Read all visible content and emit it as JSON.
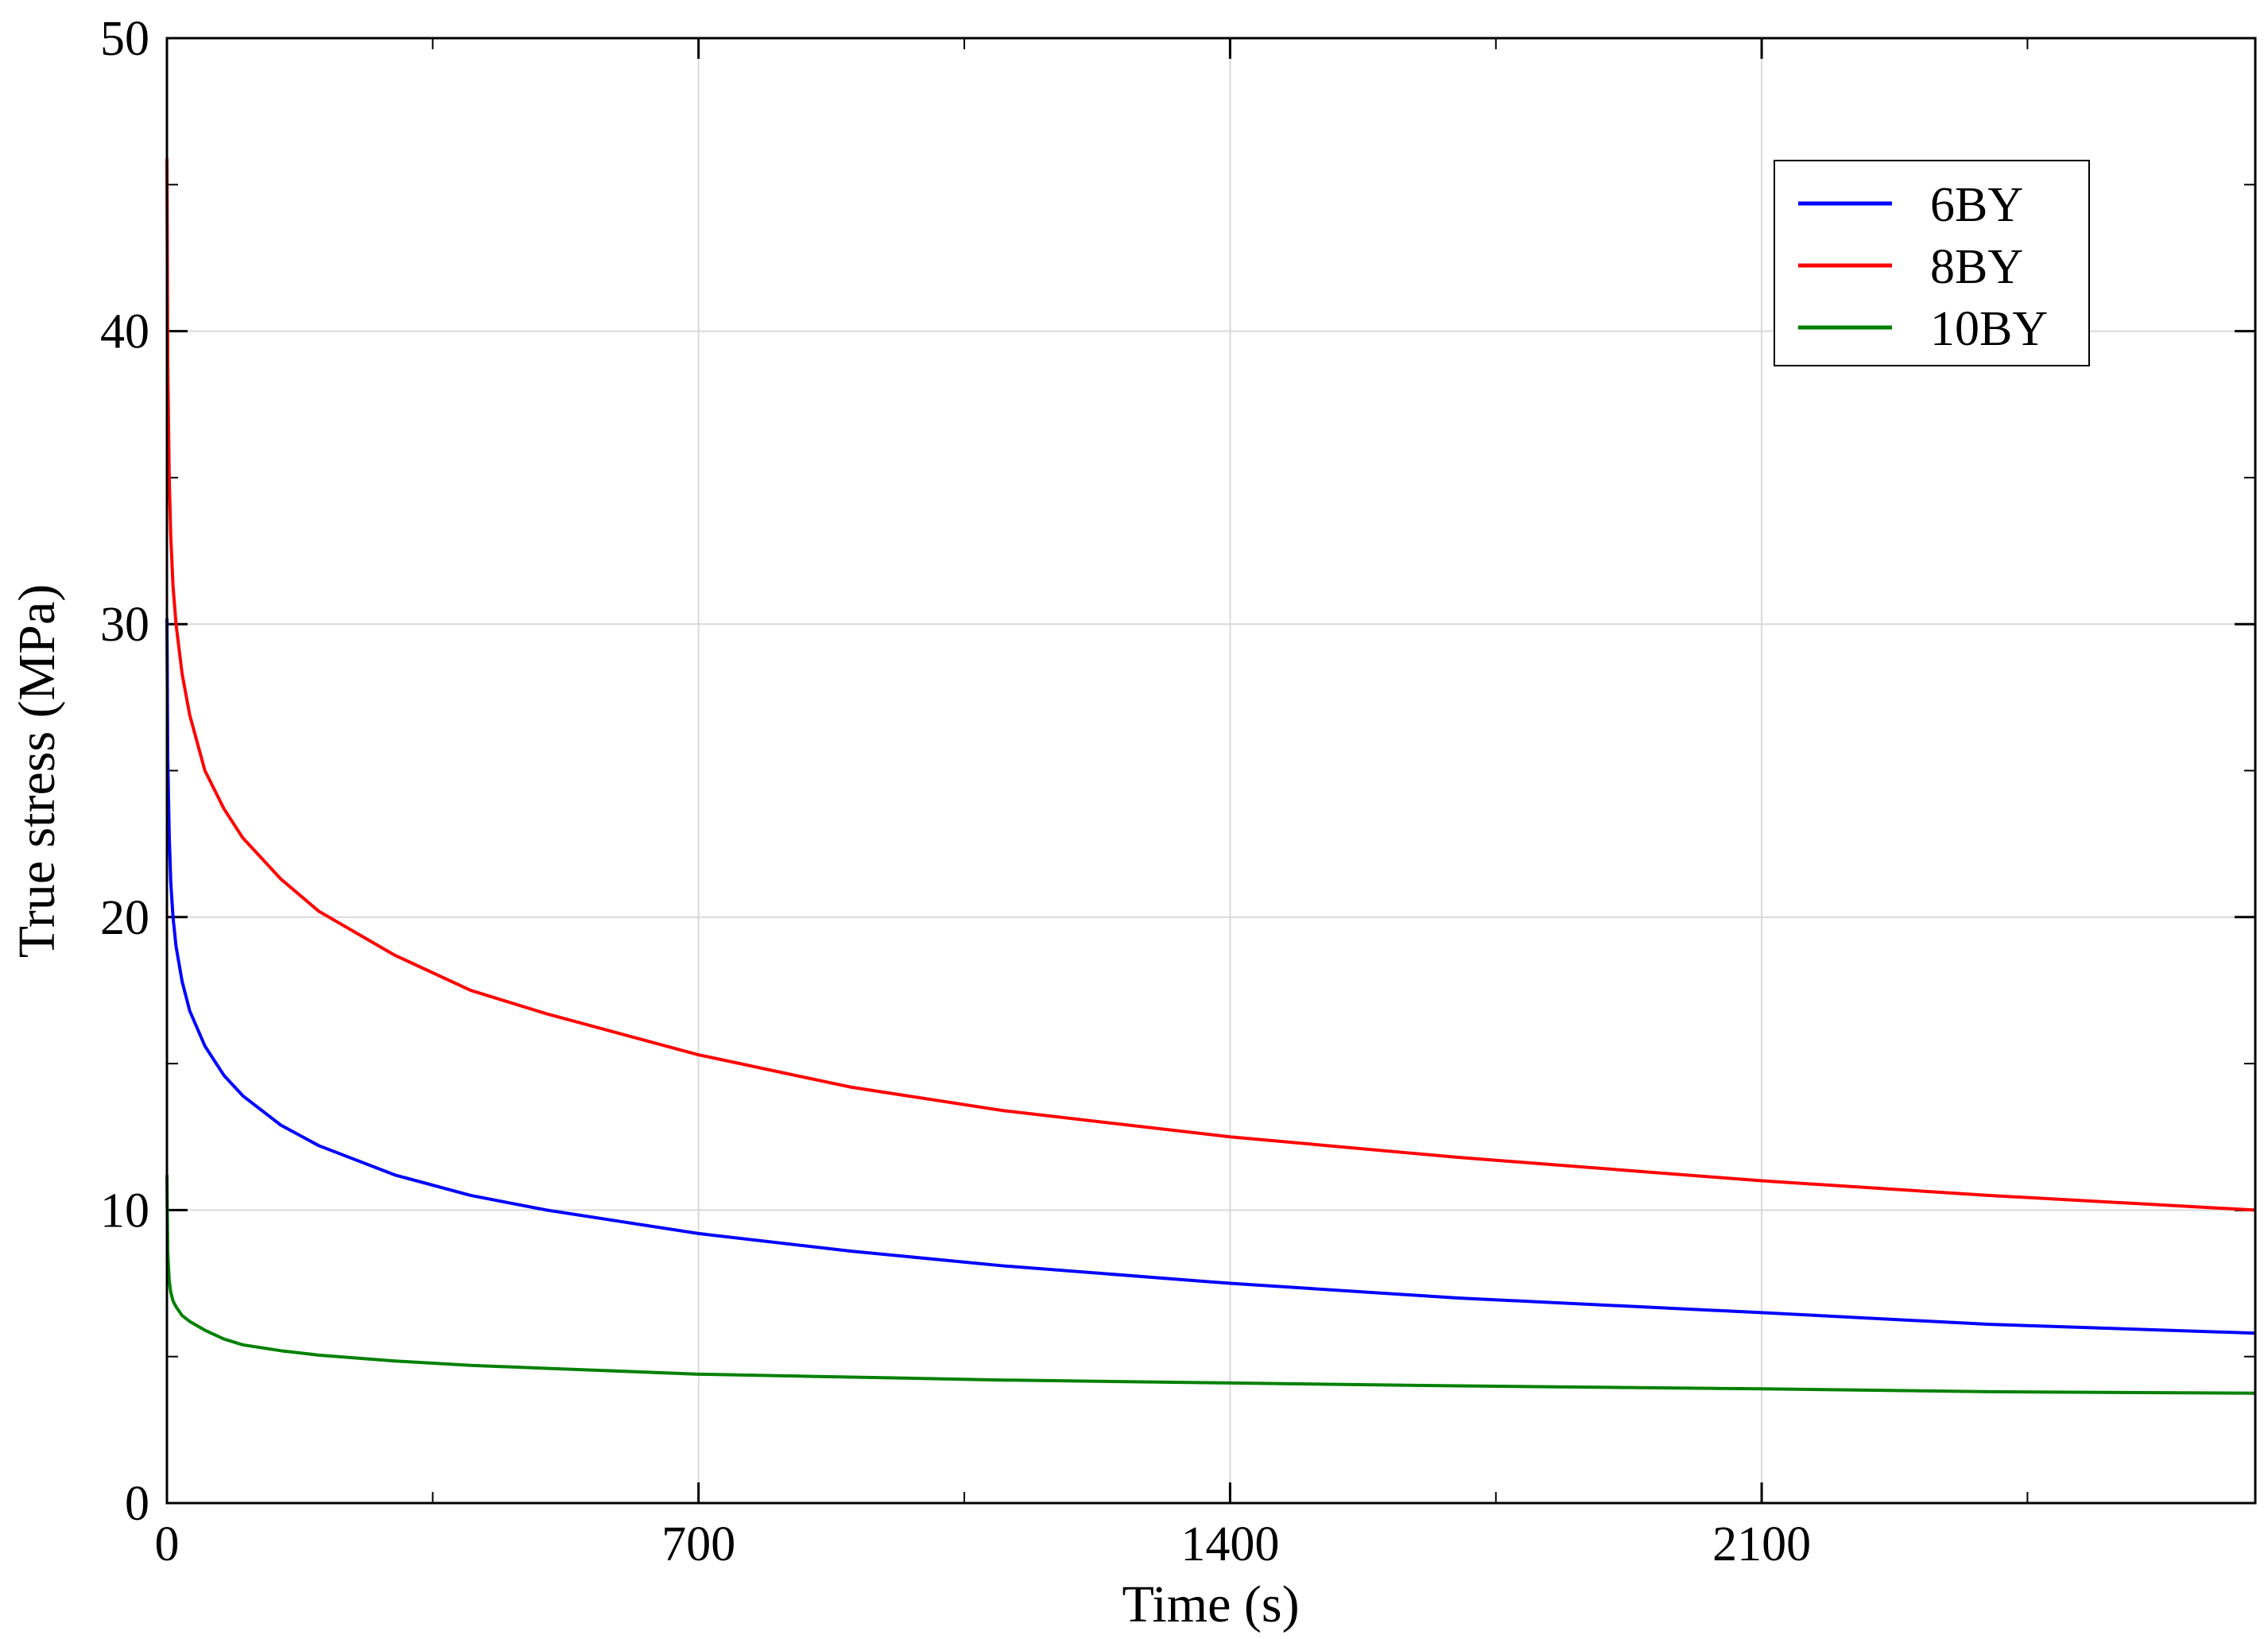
{
  "chart_data": {
    "type": "line",
    "title": "",
    "xlabel": "Time (s)",
    "ylabel": "True stress (MPa)",
    "xlim": [
      0,
      2750
    ],
    "ylim": [
      0,
      50
    ],
    "xticks": [
      0,
      700,
      1400,
      2100
    ],
    "xticks_minor": [
      350,
      1050,
      1750,
      2450
    ],
    "yticks": [
      0,
      10,
      20,
      30,
      40,
      50
    ],
    "yticks_minor": [
      5,
      15,
      25,
      35,
      45
    ],
    "grid": true,
    "legend": {
      "position": "top-right",
      "entries": [
        "6BY",
        "8BY",
        "10BY"
      ]
    },
    "series": [
      {
        "name": "6BY",
        "color": "#0000ff",
        "x": [
          0,
          1,
          3,
          5,
          8,
          12,
          20,
          30,
          50,
          75,
          100,
          150,
          200,
          300,
          400,
          500,
          700,
          900,
          1100,
          1400,
          1700,
          2100,
          2400,
          2750
        ],
        "y": [
          30.2,
          25.5,
          22.8,
          21.2,
          20.0,
          19.0,
          17.8,
          16.8,
          15.6,
          14.6,
          13.9,
          12.9,
          12.2,
          11.2,
          10.5,
          10.0,
          9.2,
          8.6,
          8.1,
          7.5,
          7.0,
          6.5,
          6.1,
          5.8
        ]
      },
      {
        "name": "8BY",
        "color": "#ff0000",
        "x": [
          0,
          1,
          3,
          5,
          8,
          12,
          20,
          30,
          50,
          75,
          100,
          150,
          200,
          300,
          400,
          500,
          700,
          900,
          1100,
          1400,
          1700,
          2100,
          2400,
          2750
        ],
        "y": [
          45.9,
          39.0,
          35.0,
          33.0,
          31.3,
          30.0,
          28.3,
          26.9,
          25.0,
          23.7,
          22.7,
          21.3,
          20.2,
          18.7,
          17.5,
          16.7,
          15.3,
          14.2,
          13.4,
          12.5,
          11.8,
          11.0,
          10.5,
          10.0
        ]
      },
      {
        "name": "10BY",
        "color": "#008000",
        "x": [
          0,
          1,
          3,
          5,
          8,
          12,
          20,
          30,
          50,
          75,
          100,
          150,
          200,
          300,
          400,
          500,
          700,
          900,
          1100,
          1400,
          1700,
          2100,
          2400,
          2750
        ],
        "y": [
          11.2,
          8.6,
          7.6,
          7.2,
          6.9,
          6.7,
          6.4,
          6.2,
          5.9,
          5.6,
          5.4,
          5.2,
          5.05,
          4.85,
          4.7,
          4.6,
          4.4,
          4.3,
          4.2,
          4.1,
          4.0,
          3.9,
          3.8,
          3.75
        ]
      }
    ]
  }
}
